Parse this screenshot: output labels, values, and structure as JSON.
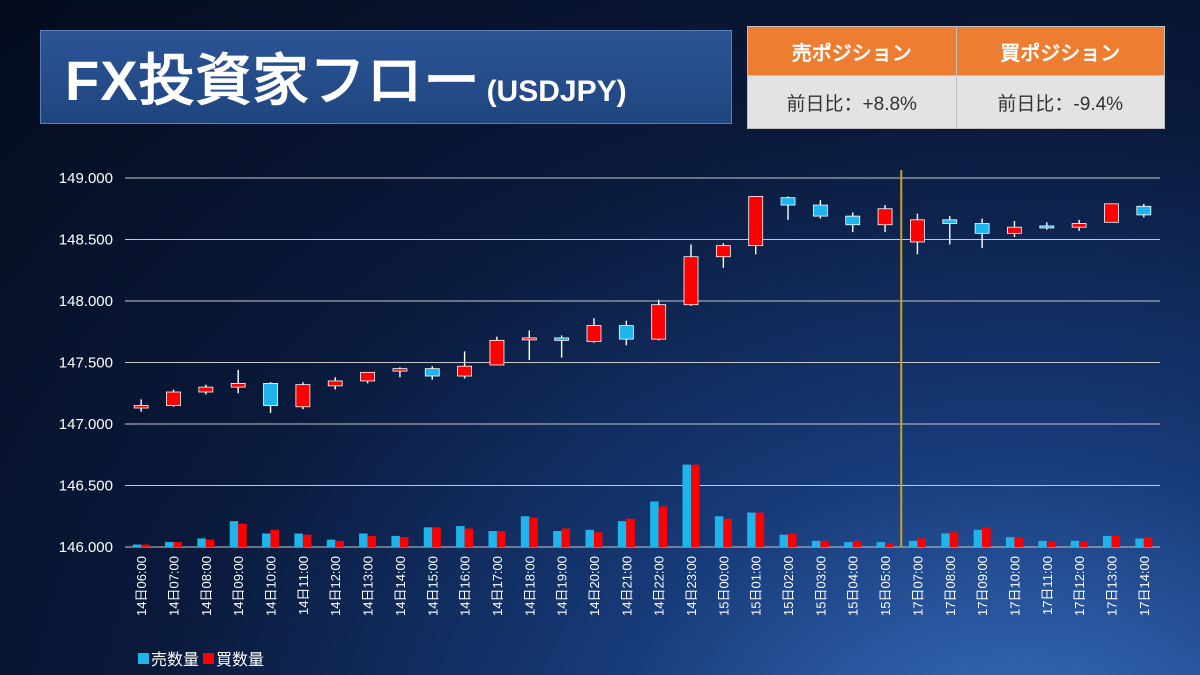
{
  "header": {
    "title": "FX投資家フロー",
    "subtitle": "(USDJPY)"
  },
  "positions": {
    "sell": {
      "label": "売ポジション",
      "change": "前日比：+8.8%"
    },
    "buy": {
      "label": "買ポジション",
      "change": "前日比：-9.4%"
    }
  },
  "colors": {
    "up": "#ff0000",
    "down": "#1eb4ec",
    "sell": "#1eb4ec",
    "buy": "#ff0000",
    "marker": "#c9a227"
  },
  "chart_data": {
    "type": "candlestick",
    "ylim": [
      146.0,
      149.0
    ],
    "yticks": [
      "149.000",
      "148.500",
      "148.000",
      "147.500",
      "147.000",
      "146.500",
      "146.000"
    ],
    "grid": true,
    "legend": {
      "position": "bottom-left",
      "sell_label": "売数量",
      "buy_label": "買数量"
    },
    "divider_after": "15日05:00",
    "categories": [
      "14日06:00",
      "14日07:00",
      "14日08:00",
      "14日09:00",
      "14日10:00",
      "14日11:00",
      "14日12:00",
      "14日13:00",
      "14日14:00",
      "14日15:00",
      "14日16:00",
      "14日17:00",
      "14日18:00",
      "14日19:00",
      "14日20:00",
      "14日21:00",
      "14日22:00",
      "14日23:00",
      "15日00:00",
      "15日01:00",
      "15日02:00",
      "15日03:00",
      "15日04:00",
      "15日05:00",
      "17日07:00",
      "17日08:00",
      "17日09:00",
      "17日10:00",
      "17日11:00",
      "17日12:00",
      "17日13:00",
      "17日14:00"
    ],
    "ohlc": [
      [
        147.13,
        147.2,
        147.1,
        147.15
      ],
      [
        147.15,
        147.28,
        147.14,
        147.26
      ],
      [
        147.26,
        147.32,
        147.24,
        147.3
      ],
      [
        147.3,
        147.44,
        147.25,
        147.33
      ],
      [
        147.33,
        147.34,
        147.09,
        147.15
      ],
      [
        147.14,
        147.34,
        147.12,
        147.32
      ],
      [
        147.31,
        147.38,
        147.28,
        147.35
      ],
      [
        147.35,
        147.42,
        147.33,
        147.42
      ],
      [
        147.43,
        147.46,
        147.38,
        147.45
      ],
      [
        147.45,
        147.47,
        147.36,
        147.39
      ],
      [
        147.39,
        147.59,
        147.37,
        147.47
      ],
      [
        147.48,
        147.71,
        147.48,
        147.68
      ],
      [
        147.69,
        147.76,
        147.52,
        147.7
      ],
      [
        147.7,
        147.72,
        147.54,
        147.68
      ],
      [
        147.67,
        147.86,
        147.66,
        147.8
      ],
      [
        147.8,
        147.84,
        147.64,
        147.69
      ],
      [
        147.69,
        148.01,
        147.68,
        147.97
      ],
      [
        147.97,
        148.46,
        147.96,
        148.36
      ],
      [
        148.36,
        148.47,
        148.27,
        148.45
      ],
      [
        148.45,
        148.85,
        148.38,
        148.85
      ],
      [
        148.84,
        148.85,
        148.66,
        148.78
      ],
      [
        148.78,
        148.82,
        148.67,
        148.69
      ],
      [
        148.69,
        148.72,
        148.56,
        148.62
      ],
      [
        148.62,
        148.78,
        148.56,
        148.75
      ],
      [
        148.48,
        148.71,
        148.38,
        148.66
      ],
      [
        148.66,
        148.69,
        148.46,
        148.63
      ],
      [
        148.63,
        148.67,
        148.43,
        148.55
      ],
      [
        148.55,
        148.65,
        148.52,
        148.6
      ],
      [
        148.61,
        148.64,
        148.58,
        148.6
      ],
      [
        148.6,
        148.66,
        148.57,
        148.63
      ],
      [
        148.64,
        148.79,
        148.64,
        148.79
      ],
      [
        148.77,
        148.79,
        148.68,
        148.7
      ]
    ],
    "sell_volume": [
      146.02,
      146.04,
      146.07,
      146.21,
      146.11,
      146.11,
      146.06,
      146.11,
      146.09,
      146.16,
      146.17,
      146.13,
      146.25,
      146.13,
      146.14,
      146.21,
      146.37,
      146.67,
      146.25,
      146.28,
      146.1,
      146.05,
      146.04,
      146.04,
      146.05,
      146.11,
      146.14,
      146.08,
      146.05,
      146.05,
      146.09,
      146.07
    ],
    "buy_volume": [
      146.02,
      146.04,
      146.06,
      146.19,
      146.14,
      146.1,
      146.05,
      146.09,
      146.08,
      146.16,
      146.15,
      146.13,
      146.24,
      146.15,
      146.12,
      146.23,
      146.33,
      146.67,
      146.23,
      146.28,
      146.11,
      146.05,
      146.05,
      146.03,
      146.07,
      146.12,
      146.16,
      146.08,
      146.04,
      146.04,
      146.09,
      146.08
    ]
  }
}
